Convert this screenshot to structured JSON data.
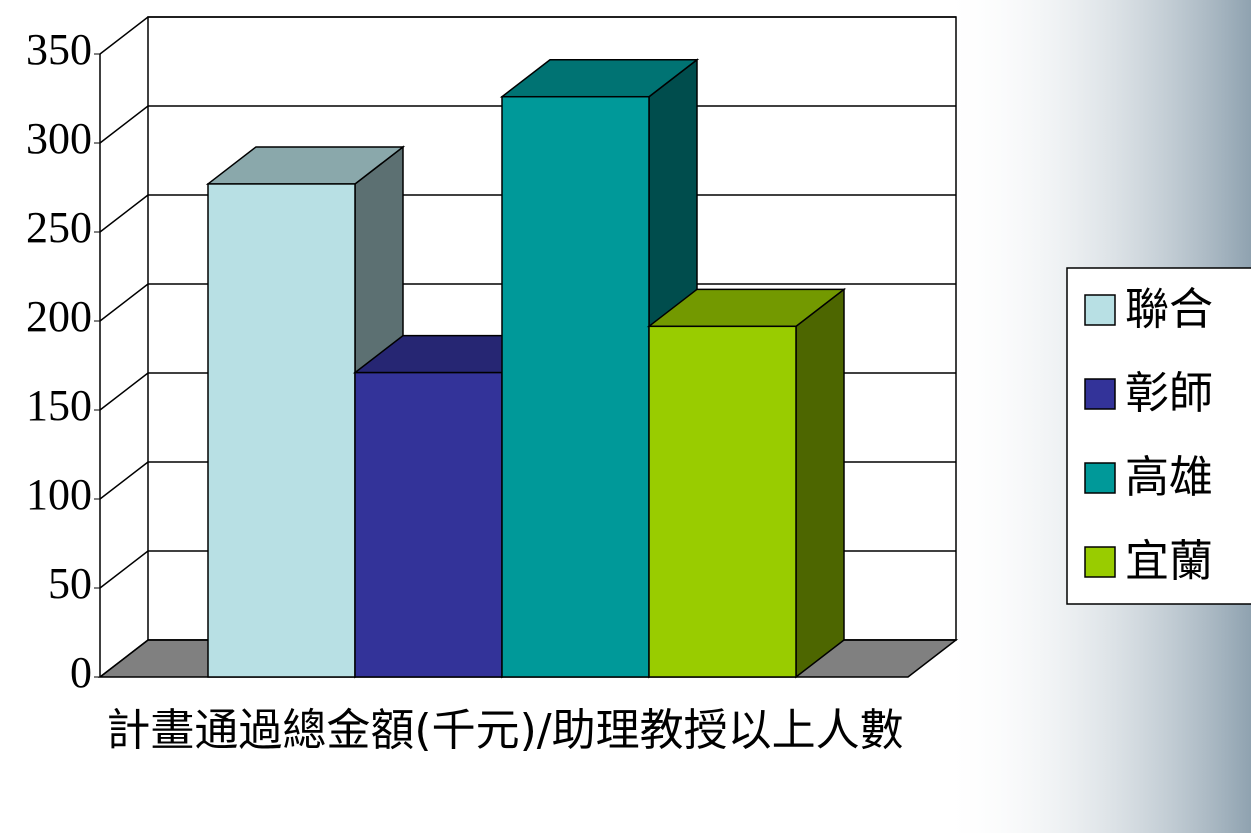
{
  "chart_data": {
    "type": "bar3d",
    "categories": [
      "計畫通過總金額(千元)/助理教授以上人數"
    ],
    "series": [
      {
        "name": "聯合",
        "color": "#b8e0e4",
        "values": [
          277
        ]
      },
      {
        "name": "彰師",
        "color": "#333399",
        "values": [
          171
        ]
      },
      {
        "name": "高雄",
        "color": "#009999",
        "values": [
          326
        ]
      },
      {
        "name": "宜蘭",
        "color": "#99cc00",
        "values": [
          197
        ]
      }
    ],
    "ylim": [
      0,
      350
    ],
    "yticks": [
      0,
      50,
      100,
      150,
      200,
      250,
      300,
      350
    ],
    "grid": true,
    "legend": "right"
  }
}
